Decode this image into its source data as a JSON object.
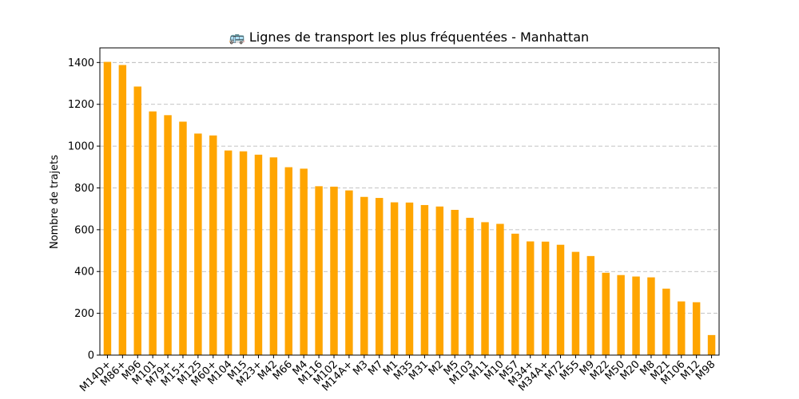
{
  "chart_data": {
    "type": "bar",
    "title": "🚌 Lignes de transport les plus fréquentées - Manhattan",
    "xlabel": "",
    "ylabel": "Nombre de trajets",
    "ylim": [
      0,
      1470
    ],
    "yticks": [
      0,
      200,
      400,
      600,
      800,
      1000,
      1200,
      1400
    ],
    "grid": "y-dashed",
    "bar_color": "#FFA500",
    "categories": [
      "M14D+",
      "M86+",
      "M96",
      "M101",
      "M79+",
      "M15+",
      "M125",
      "M60+",
      "M104",
      "M15",
      "M23+",
      "M42",
      "M66",
      "M4",
      "M116",
      "M102",
      "M14A+",
      "M3",
      "M7",
      "M1",
      "M35",
      "M31",
      "M2",
      "M5",
      "M103",
      "M11",
      "M10",
      "M57",
      "M34+",
      "M34A+",
      "M72",
      "M55",
      "M9",
      "M22",
      "M50",
      "M20",
      "M8",
      "M21",
      "M106",
      "M12",
      "M98"
    ],
    "values": [
      1403,
      1388,
      1285,
      1166,
      1148,
      1117,
      1060,
      1051,
      979,
      975,
      959,
      946,
      899,
      892,
      808,
      806,
      788,
      757,
      752,
      731,
      730,
      718,
      711,
      695,
      657,
      636,
      628,
      581,
      544,
      543,
      528,
      494,
      474,
      394,
      383,
      376,
      372,
      318,
      257,
      253,
      96
    ]
  }
}
